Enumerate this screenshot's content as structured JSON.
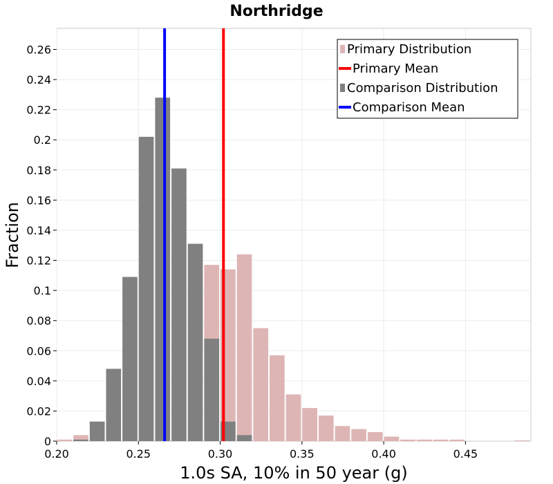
{
  "chart_data": {
    "type": "bar",
    "title": "Northridge",
    "xlabel": "1.0s SA, 10% in 50 year (g)",
    "ylabel": "Fraction",
    "xlim": [
      0.2,
      0.49
    ],
    "ylim": [
      0,
      0.274
    ],
    "bin_width": 0.01,
    "xticks": [
      {
        "value": 0.2,
        "label": "0.20"
      },
      {
        "value": 0.25,
        "label": "0.25"
      },
      {
        "value": 0.3,
        "label": "0.30"
      },
      {
        "value": 0.35,
        "label": "0.35"
      },
      {
        "value": 0.4,
        "label": "0.40"
      },
      {
        "value": 0.45,
        "label": "0.45"
      }
    ],
    "yticks": [
      {
        "value": 0,
        "label": "0"
      },
      {
        "value": 0.02,
        "label": "0.02"
      },
      {
        "value": 0.04,
        "label": "0.04"
      },
      {
        "value": 0.06,
        "label": "0.06"
      },
      {
        "value": 0.08,
        "label": "0.08"
      },
      {
        "value": 0.1,
        "label": "0.1"
      },
      {
        "value": 0.12,
        "label": "0.12"
      },
      {
        "value": 0.14,
        "label": "0.14"
      },
      {
        "value": 0.16,
        "label": "0.16"
      },
      {
        "value": 0.18,
        "label": "0.18"
      },
      {
        "value": 0.2,
        "label": "0.2"
      },
      {
        "value": 0.22,
        "label": "0.22"
      },
      {
        "value": 0.24,
        "label": "0.24"
      },
      {
        "value": 0.26,
        "label": "0.26"
      }
    ],
    "grid": true,
    "legend_position": "top-right",
    "series": [
      {
        "name": "Primary Distribution",
        "kind": "histogram",
        "color": "#deb5b5",
        "bins": [
          {
            "x": 0.2,
            "value": 0.001
          },
          {
            "x": 0.21,
            "value": 0.004
          },
          {
            "x": 0.29,
            "value": 0.117
          },
          {
            "x": 0.3,
            "value": 0.114
          },
          {
            "x": 0.31,
            "value": 0.124
          },
          {
            "x": 0.32,
            "value": 0.075
          },
          {
            "x": 0.33,
            "value": 0.057
          },
          {
            "x": 0.34,
            "value": 0.031
          },
          {
            "x": 0.35,
            "value": 0.022
          },
          {
            "x": 0.36,
            "value": 0.017
          },
          {
            "x": 0.37,
            "value": 0.01
          },
          {
            "x": 0.38,
            "value": 0.008
          },
          {
            "x": 0.39,
            "value": 0.006
          },
          {
            "x": 0.4,
            "value": 0.003
          },
          {
            "x": 0.41,
            "value": 0.001
          },
          {
            "x": 0.42,
            "value": 0.001
          },
          {
            "x": 0.43,
            "value": 0.001
          },
          {
            "x": 0.44,
            "value": 0.001
          },
          {
            "x": 0.48,
            "value": 0.0005
          }
        ]
      },
      {
        "name": "Primary Mean",
        "kind": "vline",
        "color": "#ff0000",
        "x": 0.302
      },
      {
        "name": "Comparison Distribution",
        "kind": "histogram",
        "color": "#808080",
        "bins": [
          {
            "x": 0.21,
            "value": 0.001
          },
          {
            "x": 0.22,
            "value": 0.013
          },
          {
            "x": 0.23,
            "value": 0.048
          },
          {
            "x": 0.24,
            "value": 0.109
          },
          {
            "x": 0.25,
            "value": 0.202
          },
          {
            "x": 0.26,
            "value": 0.228
          },
          {
            "x": 0.27,
            "value": 0.181
          },
          {
            "x": 0.28,
            "value": 0.131
          },
          {
            "x": 0.29,
            "value": 0.068
          },
          {
            "x": 0.3,
            "value": 0.013
          },
          {
            "x": 0.31,
            "value": 0.004
          }
        ]
      },
      {
        "name": "Comparison Mean",
        "kind": "vline",
        "color": "#0000ff",
        "x": 0.266
      }
    ]
  }
}
